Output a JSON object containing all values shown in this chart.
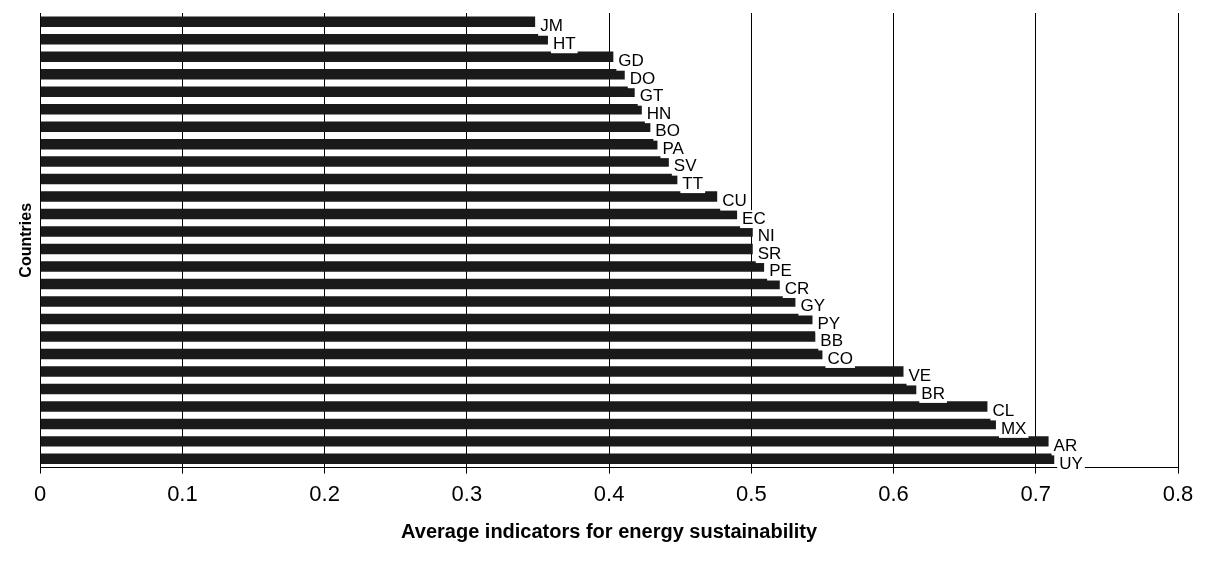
{
  "chart_data": {
    "type": "bar",
    "orientation": "horizontal",
    "xlabel": "Average indicators for energy sustainability",
    "ylabel": "Countries",
    "categories": [
      "JM",
      "HT",
      "GD",
      "DO",
      "GT",
      "HN",
      "BO",
      "PA",
      "SV",
      "TT",
      "CU",
      "EC",
      "NI",
      "SR",
      "PE",
      "CR",
      "GY",
      "PY",
      "BB",
      "CO",
      "VE",
      "BR",
      "CL",
      "MX",
      "AR",
      "UY"
    ],
    "values": [
      0.348,
      0.357,
      0.403,
      0.411,
      0.418,
      0.423,
      0.429,
      0.434,
      0.442,
      0.448,
      0.476,
      0.49,
      0.501,
      0.501,
      0.509,
      0.52,
      0.531,
      0.543,
      0.545,
      0.55,
      0.607,
      0.616,
      0.666,
      0.672,
      0.709,
      0.713
    ],
    "color": "#1a1a1a",
    "xlim": [
      0,
      0.8
    ],
    "xticks": [
      0,
      0.1,
      0.2,
      0.3,
      0.4,
      0.5,
      0.6,
      0.7,
      0.8
    ],
    "grid": "x",
    "tick_labels": "x",
    "legend": false
  }
}
